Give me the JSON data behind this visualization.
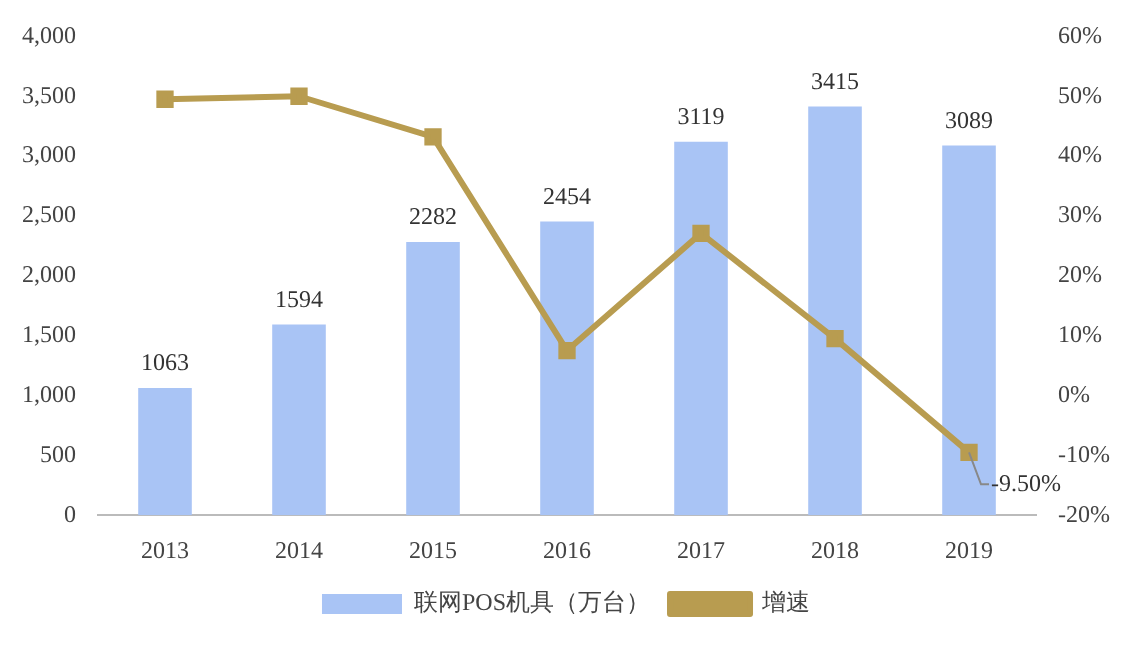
{
  "chart_data": {
    "type": "bar",
    "categories": [
      "2013",
      "2014",
      "2015",
      "2016",
      "2017",
      "2018",
      "2019"
    ],
    "series": [
      {
        "name": "联网POS机具（万台）",
        "color": "#a9c4f5",
        "values": [
          1063,
          1594,
          2282,
          2454,
          3119,
          3415,
          3089
        ],
        "value_labels": [
          "1063",
          "1594",
          "2282",
          "2454",
          "3119",
          "3415",
          "3089"
        ]
      },
      {
        "name": "增速",
        "type": "line",
        "axis": "y2",
        "color": "#b89c50",
        "values": [
          49.5,
          50,
          43.2,
          7.5,
          27.1,
          9.5,
          -9.5
        ]
      }
    ],
    "ylim": [
      0,
      4000
    ],
    "yticks": [
      0,
      500,
      {
        "value": 1000,
        "label": "1,000"
      },
      {
        "value": 1500,
        "label": "1,500"
      },
      {
        "value": 2000,
        "label": "2,000"
      },
      {
        "value": 2500,
        "label": "2,500"
      },
      {
        "value": 3000,
        "label": "3,000"
      },
      {
        "value": 3500,
        "label": "3,500"
      },
      {
        "value": 4000,
        "label": "4,000"
      }
    ],
    "y2lim": [
      -20,
      60
    ],
    "y2ticks": [
      {
        "value": -20,
        "label": "-20%"
      },
      {
        "value": -10,
        "label": "-10%"
      },
      {
        "value": 0,
        "label": "0%"
      },
      {
        "value": 10,
        "label": "10%"
      },
      {
        "value": 20,
        "label": "20%"
      },
      {
        "value": 30,
        "label": "30%"
      },
      {
        "value": 40,
        "label": "40%"
      },
      {
        "value": 50,
        "label": "50%"
      },
      {
        "value": 60,
        "label": "60%"
      }
    ],
    "annotations": [
      {
        "text": "-9.50%",
        "x": "2019",
        "y": -9.5
      }
    ],
    "marker": "square",
    "legend": "bottom",
    "grid": false
  }
}
